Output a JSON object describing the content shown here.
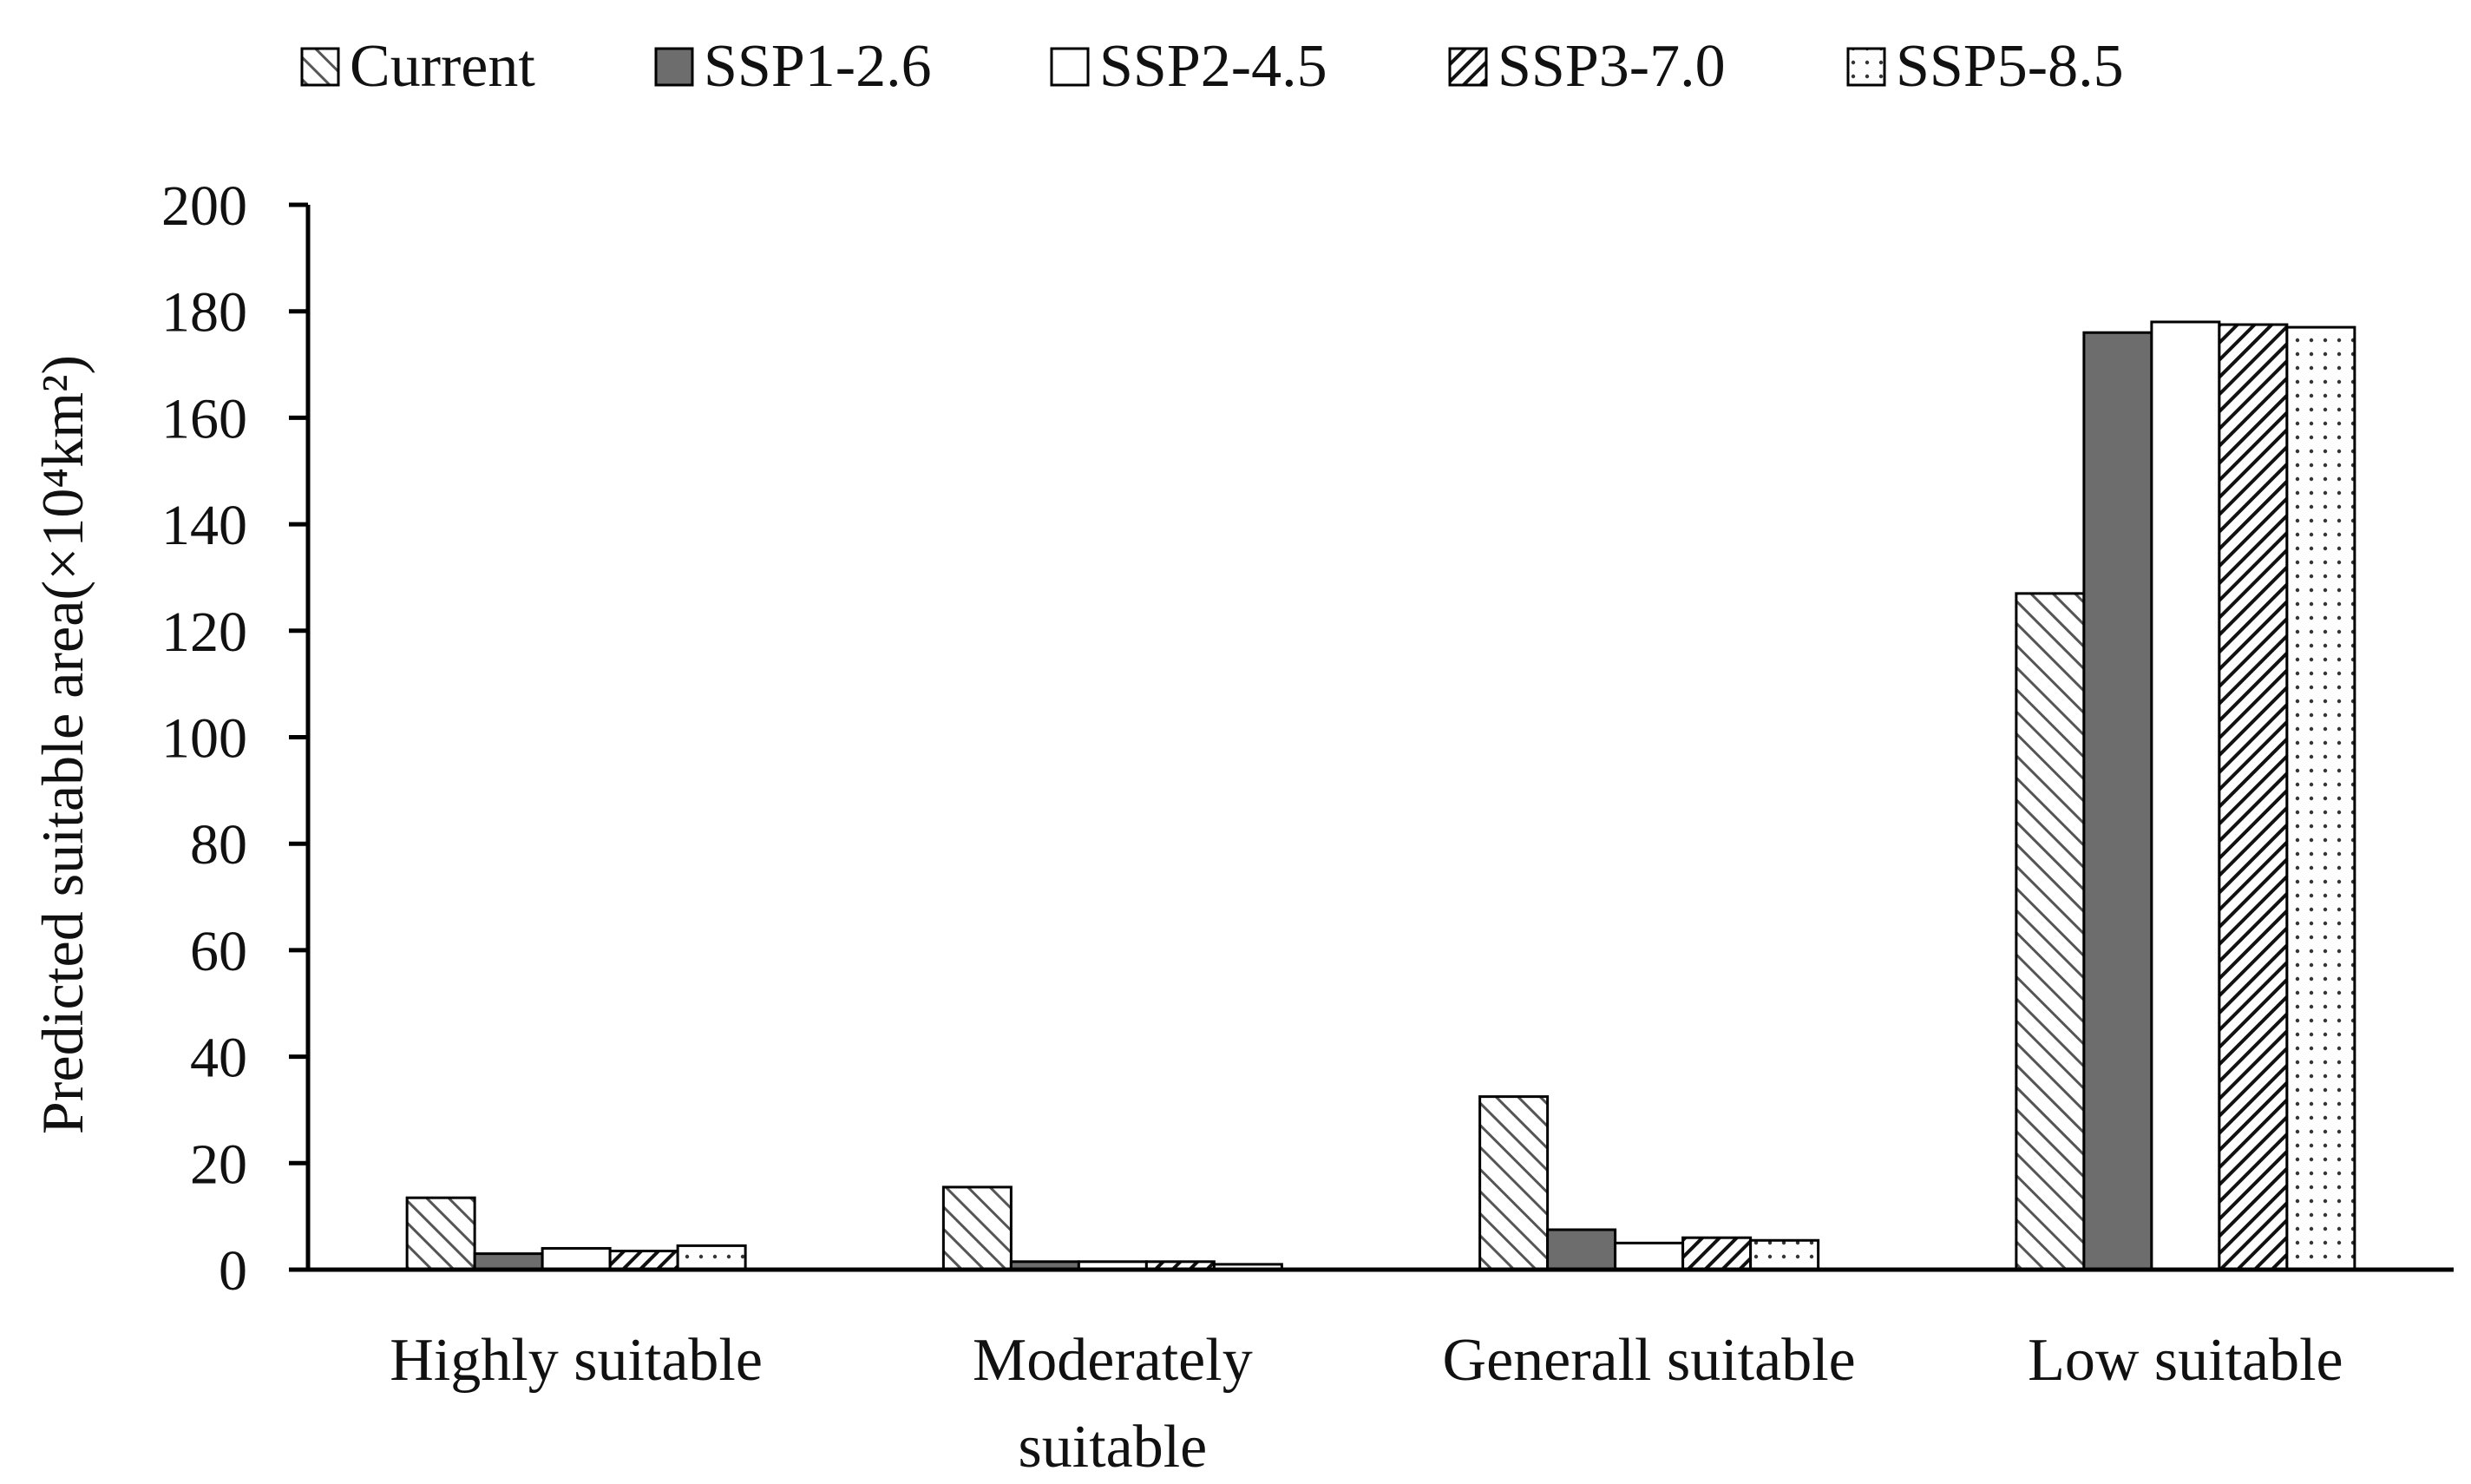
{
  "chart_data": {
    "type": "bar",
    "title": "",
    "xlabel": "",
    "ylabel": "Predicted suitable area(×10⁴km²)",
    "ylim": [
      0,
      200
    ],
    "yticks": [
      0,
      20,
      40,
      60,
      80,
      100,
      120,
      140,
      160,
      180,
      200
    ],
    "grid": false,
    "legend_position": "top",
    "categories": [
      [
        "Highly suitable"
      ],
      [
        "Moderately",
        "suitable"
      ],
      [
        "Generall suitable"
      ],
      [
        "Low suitable"
      ]
    ],
    "series": [
      {
        "name": "Current",
        "pattern": "hatch-light",
        "values": [
          13.5,
          15.5,
          32.5,
          127.0
        ]
      },
      {
        "name": "SSP1-2.6",
        "pattern": "solid-gray",
        "values": [
          3.0,
          1.5,
          7.5,
          176.0
        ]
      },
      {
        "name": "SSP2-4.5",
        "pattern": "plain-white",
        "values": [
          4.0,
          1.5,
          5.0,
          178.0
        ]
      },
      {
        "name": "SSP3-7.0",
        "pattern": "hatch-dark",
        "values": [
          3.5,
          1.5,
          6.0,
          177.5
        ]
      },
      {
        "name": "SSP5-8.5",
        "pattern": "dotted",
        "values": [
          4.5,
          1.0,
          5.5,
          177.0
        ]
      }
    ]
  }
}
